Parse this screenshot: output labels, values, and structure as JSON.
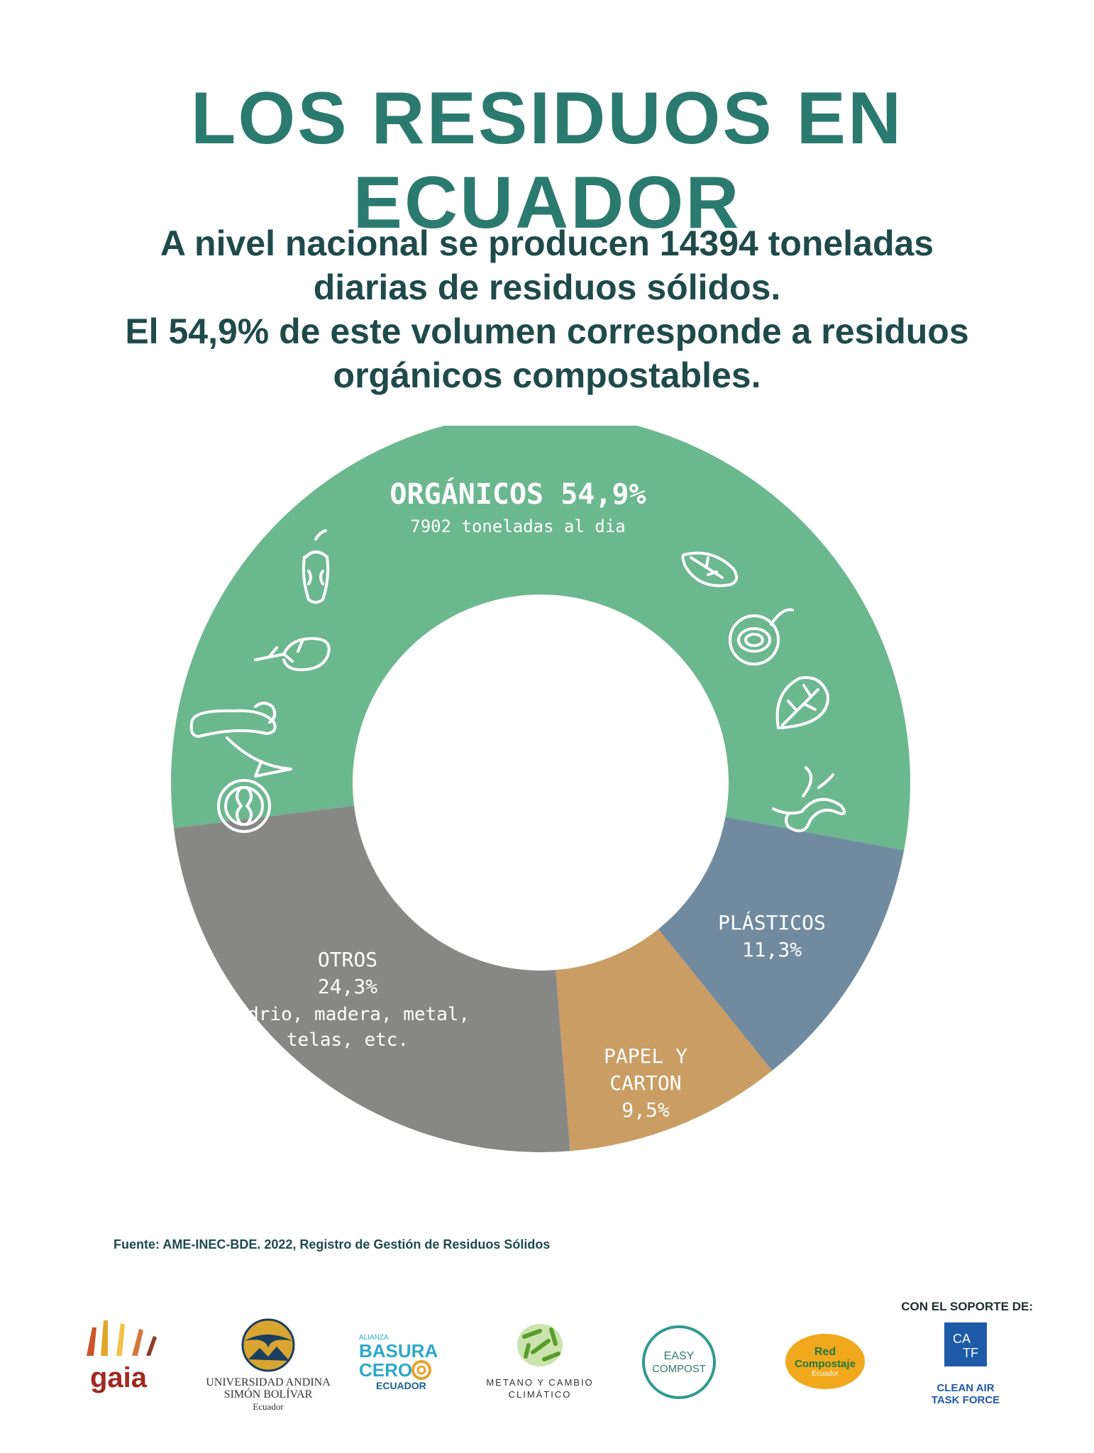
{
  "title": "LOS RESIDUOS EN ECUADOR",
  "intro": {
    "line1": "A nivel nacional se producen 14394 toneladas",
    "line2": "diarias de residuos sólidos.",
    "line3": "El 54,9% de este volumen corresponde a residuos",
    "line4": "orgánicos compostables."
  },
  "chart_data": {
    "type": "pie",
    "donut": true,
    "title": "",
    "slices": [
      {
        "name": "ORGÁNICOS",
        "value": 54.9,
        "label": "ORGÁNICOS 54,9%",
        "sublabel": "7902 toneladas al dia",
        "color": "#6cb88e"
      },
      {
        "name": "PLÁSTICOS",
        "value": 11.3,
        "label": "PLÁSTICOS",
        "pct_label": "11,3%",
        "color": "#708ba0"
      },
      {
        "name": "PAPEL Y CARTON",
        "value": 9.5,
        "label": "PAPEL Y",
        "label2": "CARTON",
        "pct_label": "9,5%",
        "color": "#c99d64"
      },
      {
        "name": "OTROS",
        "value": 24.3,
        "label": "OTROS",
        "pct_label": "24,3%",
        "sublabel": "Vidrio, madera, metal,",
        "sublabel2": "telas, etc.",
        "color": "#878786"
      }
    ]
  },
  "icons": [
    "apple-core-icon",
    "leaf-icon",
    "onion-icon",
    "linden-leaf-icon",
    "sprout-icon",
    "carrot-icon",
    "worm-icon",
    "citrus-icon"
  ],
  "source": "Fuente: AME-INEC-BDE. 2022, Registro de Gestión de Residuos Sólidos",
  "support_label": "CON EL SOPORTE DE:",
  "logos": {
    "gaia": "gaia",
    "uasb_line1": "UNIVERSIDAD ANDINA",
    "uasb_line2": "SIMÓN BOLÍVAR",
    "uasb_line3": "Ecuador",
    "bc_top": "ALIANZA",
    "bc_line1": "BASURA",
    "bc_line2": "CERO",
    "bc_line3": "ECUADOR",
    "metano_line1": "METANO Y CAMBIO",
    "metano_line2": "CLIMÁTICO",
    "easy_line1": "EASY",
    "easy_line2": "COMPOST",
    "red_line1": "Red",
    "red_line2": "Compostaje",
    "red_line3": "Ecuador",
    "catf_line1": "CLEAN AIR",
    "catf_line2": "TASK FORCE"
  }
}
